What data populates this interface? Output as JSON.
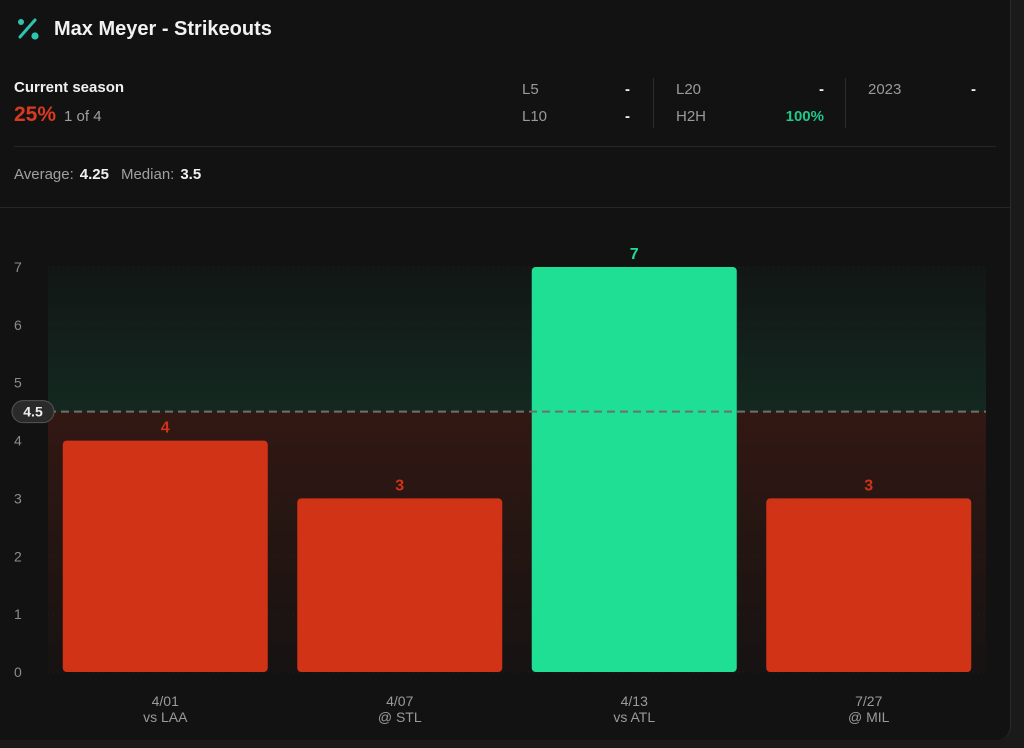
{
  "header": {
    "title": "Max Meyer - Strikeouts",
    "icon": "percent-icon"
  },
  "season": {
    "label": "Current season",
    "hit_rate": "25%",
    "record": "1 of 4"
  },
  "splits": [
    {
      "label": "L5",
      "value": "-"
    },
    {
      "label": "L10",
      "value": "-"
    },
    {
      "label": "L20",
      "value": "-"
    },
    {
      "label": "H2H",
      "value": "100%"
    },
    {
      "label": "2023",
      "value": "-"
    }
  ],
  "summary": {
    "average_label": "Average:",
    "average_value": "4.25",
    "median_label": "Median:",
    "median_value": "3.5"
  },
  "colors": {
    "over": "#1fdf94",
    "under": "#d13317",
    "line": "#6f6f6f"
  },
  "chart_data": {
    "type": "bar",
    "title": "",
    "xlabel": "",
    "ylabel": "",
    "ylim": [
      0,
      7
    ],
    "yticks": [
      0,
      1,
      2,
      3,
      4,
      5,
      6,
      7
    ],
    "line_value": 4.5,
    "line_label": "4.5",
    "categories": [
      {
        "date": "4/01",
        "opponent": "vs LAA"
      },
      {
        "date": "4/07",
        "opponent": "@ STL"
      },
      {
        "date": "4/13",
        "opponent": "vs ATL"
      },
      {
        "date": "7/27",
        "opponent": "@ MIL"
      }
    ],
    "values": [
      4,
      3,
      7,
      3
    ],
    "data_labels": [
      "4",
      "3",
      "7",
      "3"
    ]
  }
}
